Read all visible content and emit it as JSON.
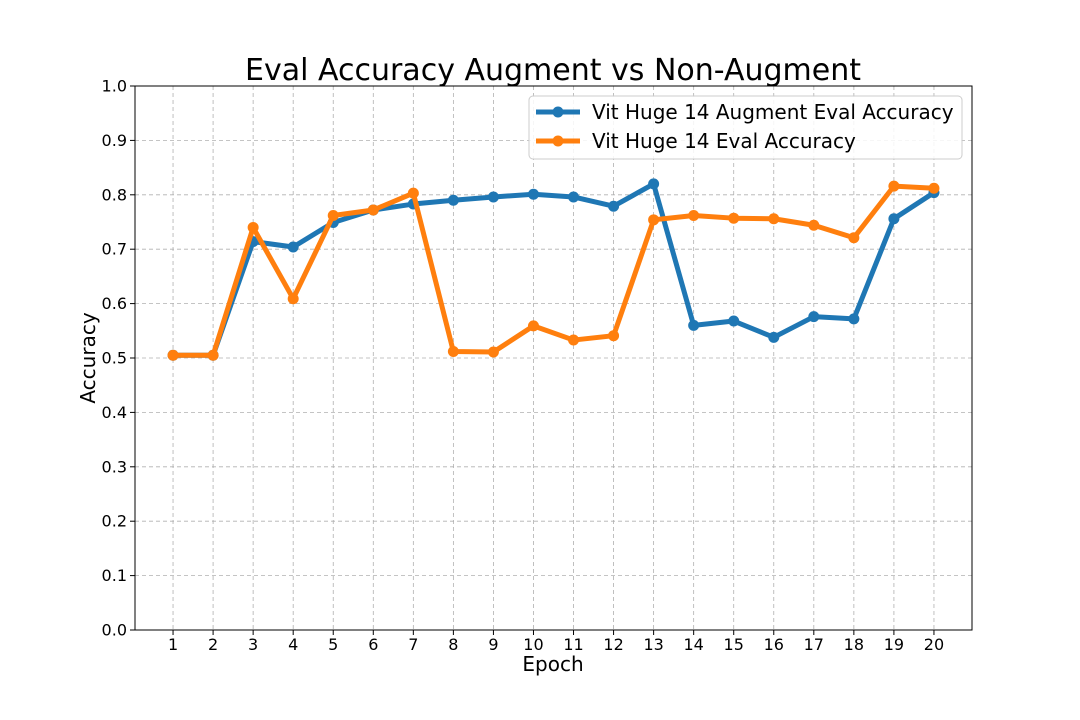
{
  "chart_data": {
    "type": "line",
    "title": "Eval Accuracy Augment vs Non-Augment",
    "xlabel": "Epoch",
    "ylabel": "Accuracy",
    "x": [
      1,
      2,
      3,
      4,
      5,
      6,
      7,
      8,
      9,
      10,
      11,
      12,
      13,
      14,
      15,
      16,
      17,
      18,
      19,
      20
    ],
    "xlim": [
      0.05,
      20.95
    ],
    "ylim": [
      0.0,
      1.0
    ],
    "yticks": [
      "0.0",
      "0.1",
      "0.2",
      "0.3",
      "0.4",
      "0.5",
      "0.6",
      "0.7",
      "0.8",
      "0.9",
      "1.0"
    ],
    "xticks": [
      "1",
      "2",
      "3",
      "4",
      "5",
      "6",
      "7",
      "8",
      "9",
      "10",
      "11",
      "12",
      "13",
      "14",
      "15",
      "16",
      "17",
      "18",
      "19",
      "20"
    ],
    "grid": true,
    "legend_position": "top-right",
    "series": [
      {
        "name": "Vit Huge 14 Augment Eval Accuracy",
        "color": "#1f77b4",
        "values": [
          0.505,
          0.505,
          0.714,
          0.704,
          0.749,
          0.772,
          0.783,
          0.79,
          0.796,
          0.801,
          0.796,
          0.779,
          0.82,
          0.56,
          0.568,
          0.538,
          0.576,
          0.572,
          0.756,
          0.804
        ]
      },
      {
        "name": "Vit Huge 14 Eval Accuracy",
        "color": "#ff7f0e",
        "values": [
          0.505,
          0.505,
          0.74,
          0.609,
          0.762,
          0.772,
          0.803,
          0.512,
          0.511,
          0.559,
          0.533,
          0.541,
          0.754,
          0.762,
          0.757,
          0.756,
          0.744,
          0.721,
          0.816,
          0.812
        ]
      }
    ]
  }
}
